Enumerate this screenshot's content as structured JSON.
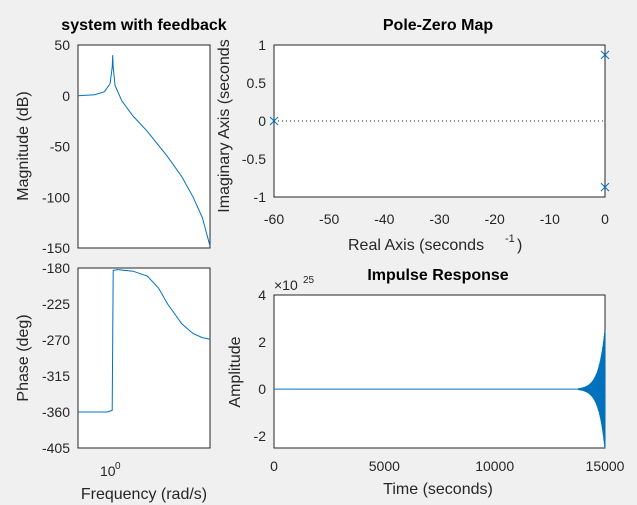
{
  "figure": {
    "bode_title": "system with feedback",
    "mag_ylabel": "Magnitude (dB)",
    "phase_ylabel": "Phase (deg)",
    "bode_xlabel": "Frequency  (rad/s)",
    "pz_title": "Pole-Zero Map",
    "pz_xlabel_prefix": "Real Axis (seconds",
    "pz_xlabel_exp": "-1",
    "pz_xlabel_suffix": ")",
    "pz_ylabel": "Imaginary Axis (seconds",
    "imp_title": "Impulse Response",
    "imp_xlabel": "Time (seconds)",
    "imp_ylabel": "Amplitude",
    "imp_multiplier_base": "×10",
    "imp_multiplier_exp": "25"
  },
  "colors": {
    "line": "#0072bd",
    "axis": "#262626",
    "background": "#f0f0f0",
    "plot_bg": "#ffffff"
  },
  "chart_data": [
    {
      "type": "line",
      "panel": "magnitude",
      "title": "system with feedback",
      "ylabel": "Magnitude (dB)",
      "xscale": "log",
      "ylim": [
        -150,
        50
      ],
      "yticks": [
        "50",
        "0",
        "-50",
        "-100",
        "-150"
      ],
      "x_tick_base": "10",
      "x_tick_exp": "0",
      "series": [
        {
          "x": [
            0.5,
            0.7,
            0.85,
            0.95,
            0.99,
            1.0,
            1.01,
            1.05,
            1.2,
            1.5,
            2,
            3,
            4,
            5,
            6,
            7
          ],
          "values": [
            0,
            1,
            4,
            12,
            28,
            40,
            28,
            10,
            -5,
            -20,
            -35,
            -60,
            -80,
            -100,
            -120,
            -148
          ]
        }
      ]
    },
    {
      "type": "line",
      "panel": "phase",
      "ylabel": "Phase (deg)",
      "xlabel": "Frequency  (rad/s)",
      "xscale": "log",
      "ylim": [
        -405,
        -180
      ],
      "yticks": [
        "-180",
        "-225",
        "-270",
        "-315",
        "-360",
        "-405"
      ],
      "series": [
        {
          "x": [
            0.5,
            0.9,
            0.99,
            1.0,
            1.01,
            1.1,
            1.5,
            2,
            2.5,
            3,
            4,
            5,
            6,
            7
          ],
          "values": [
            -360,
            -360,
            -358,
            -270,
            -183,
            -182,
            -184,
            -190,
            -205,
            -225,
            -250,
            -262,
            -267,
            -269
          ]
        }
      ]
    },
    {
      "type": "scatter",
      "panel": "pole-zero",
      "title": "Pole-Zero Map",
      "xlim": [
        -60,
        0
      ],
      "ylim": [
        -1,
        1
      ],
      "xticks": [
        "-60",
        "-50",
        "-40",
        "-30",
        "-20",
        "-10",
        "0"
      ],
      "yticks": [
        "1",
        "0.5",
        "0",
        "-0.5",
        "-1"
      ],
      "poles": [
        {
          "x": -60,
          "y": 0
        },
        {
          "x": 0,
          "y": 0.87
        },
        {
          "x": 0,
          "y": -0.87
        }
      ],
      "reference_line": {
        "y": 0,
        "style": "dotted"
      }
    },
    {
      "type": "line",
      "panel": "impulse",
      "title": "Impulse Response",
      "xlabel": "Time (seconds)",
      "ylabel": "Amplitude",
      "xlim": [
        0,
        15000
      ],
      "ylim": [
        -2.5,
        4
      ],
      "xticks": [
        "0",
        "5000",
        "10000",
        "15000"
      ],
      "yticks": [
        "4",
        "2",
        "0",
        "-2"
      ],
      "y_multiplier": "1e25",
      "series": [
        {
          "x": [
            0,
            13500,
            14200,
            14600,
            15000
          ],
          "values": [
            0,
            0.05,
            0.4,
            1.0,
            2.6
          ]
        }
      ]
    }
  ]
}
